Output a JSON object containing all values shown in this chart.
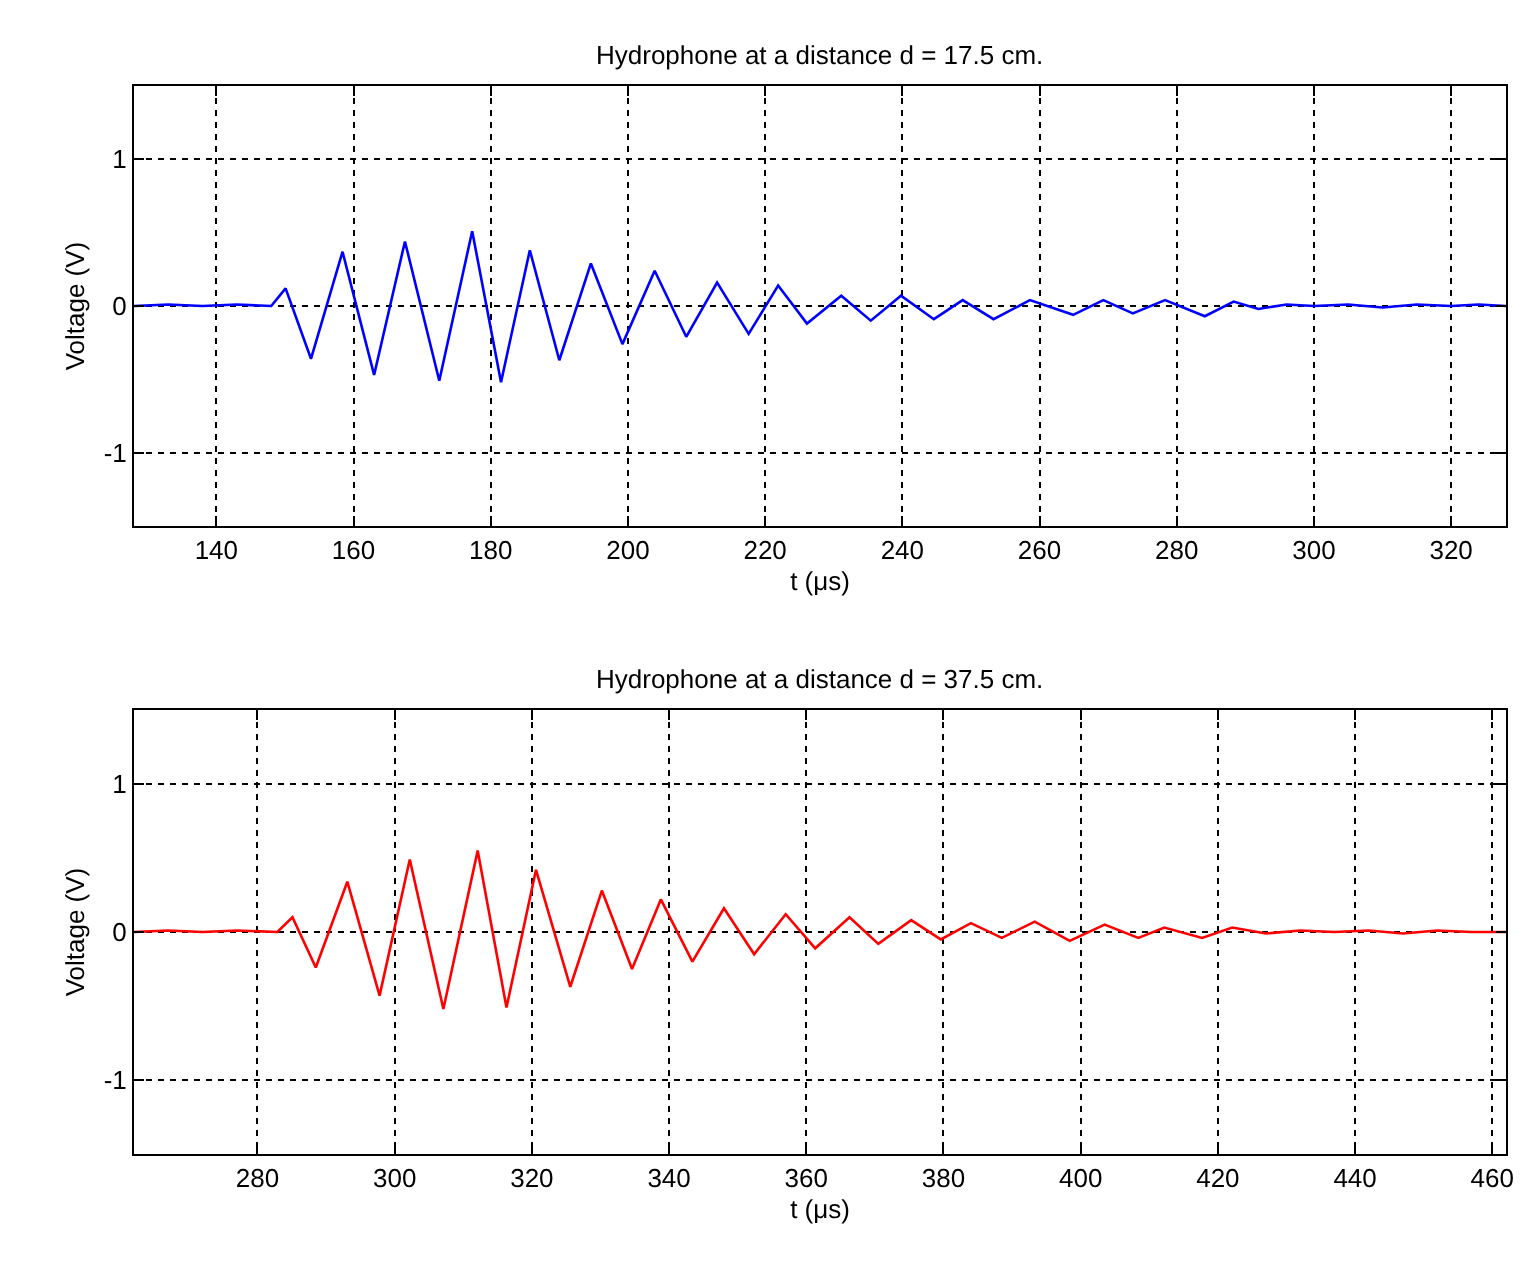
{
  "chart_data": [
    {
      "type": "line",
      "title": "Hydrophone at a distance d = 17.5 cm.",
      "xlabel": "t (μs)",
      "ylabel": "Voltage (V)",
      "color": "#0000ff",
      "grid": true,
      "xlim": [
        128,
        328
      ],
      "xticks": [
        140,
        160,
        180,
        200,
        220,
        240,
        260,
        280,
        300,
        320
      ],
      "ylim": [
        -1.5,
        1.5
      ],
      "yticks": [
        -1,
        0,
        1
      ],
      "x": [
        128,
        133,
        138,
        143,
        148.0,
        150.1,
        153.8,
        158.4,
        163.0,
        167.5,
        172.5,
        177.3,
        181.5,
        185.7,
        190.0,
        194.6,
        199.2,
        203.9,
        208.5,
        213.0,
        217.6,
        221.9,
        226.1,
        231.1,
        235.4,
        239.8,
        244.6,
        248.8,
        253.3,
        258.6,
        264.9,
        269.3,
        273.6,
        278.3,
        284.1,
        288.3,
        291.9,
        296,
        300,
        305,
        310,
        315,
        320,
        324,
        328
      ],
      "values": [
        0,
        0.01,
        0,
        0.01,
        0,
        0.12,
        -0.36,
        0.37,
        -0.47,
        0.44,
        -0.51,
        0.51,
        -0.52,
        0.38,
        -0.37,
        0.29,
        -0.26,
        0.24,
        -0.21,
        0.16,
        -0.19,
        0.14,
        -0.12,
        0.07,
        -0.1,
        0.07,
        -0.09,
        0.04,
        -0.09,
        0.04,
        -0.06,
        0.04,
        -0.05,
        0.04,
        -0.07,
        0.03,
        -0.02,
        0.01,
        0,
        0.01,
        -0.01,
        0.01,
        0,
        0.01,
        0
      ]
    },
    {
      "type": "line",
      "title": "Hydrophone at a distance d = 37.5 cm.",
      "xlabel": "t (μs)",
      "ylabel": "Voltage (V)",
      "color": "#ff0000",
      "grid": true,
      "xlim": [
        262,
        462
      ],
      "xticks": [
        280,
        300,
        320,
        340,
        360,
        380,
        400,
        420,
        440,
        460
      ],
      "ylim": [
        -1.5,
        1.5
      ],
      "yticks": [
        -1,
        0,
        1
      ],
      "x": [
        262,
        267,
        272,
        277,
        282.9,
        285.1,
        288.5,
        293.1,
        297.8,
        302.2,
        307.1,
        312.1,
        316.3,
        320.6,
        325.6,
        330.2,
        334.6,
        338.8,
        343.4,
        348.0,
        352.4,
        357.0,
        361.3,
        366.3,
        370.5,
        375.3,
        379.6,
        384.0,
        388.5,
        393.3,
        398.4,
        403.5,
        408.4,
        412.2,
        417.7,
        422.1,
        427,
        432,
        437,
        442,
        447,
        452,
        457,
        462
      ],
      "values": [
        0,
        0.01,
        0,
        0.01,
        0,
        0.1,
        -0.24,
        0.34,
        -0.43,
        0.49,
        -0.52,
        0.55,
        -0.51,
        0.42,
        -0.37,
        0.28,
        -0.25,
        0.22,
        -0.2,
        0.16,
        -0.15,
        0.12,
        -0.11,
        0.1,
        -0.08,
        0.08,
        -0.05,
        0.06,
        -0.04,
        0.07,
        -0.06,
        0.05,
        -0.04,
        0.03,
        -0.04,
        0.03,
        -0.01,
        0.01,
        0,
        0.01,
        -0.01,
        0.01,
        0,
        0
      ]
    }
  ]
}
